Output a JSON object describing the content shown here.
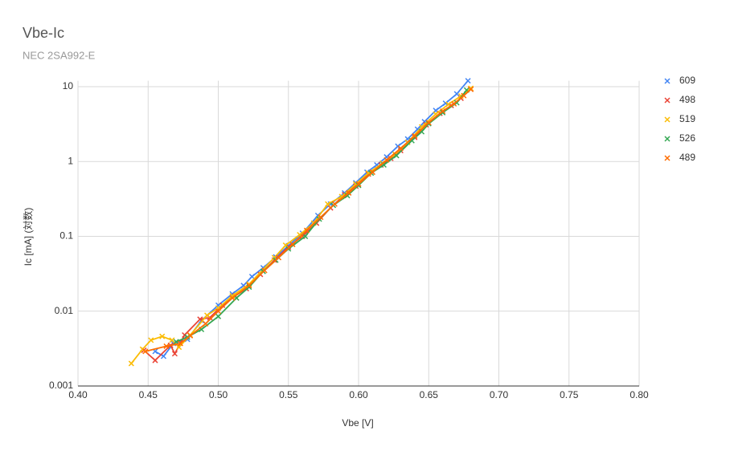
{
  "chart_data": {
    "type": "line",
    "title": "Vbe-Ic",
    "subtitle": "NEC 2SA992-E",
    "x_label": "Vbe [V]",
    "y_label": "Ic [mA] (対数)",
    "log_y": true,
    "grid": true,
    "legend": "right",
    "xlim": [
      0.4,
      0.8
    ],
    "xticks": [
      {
        "value": 0.4,
        "label": "0.40"
      },
      {
        "value": 0.45,
        "label": "0.45"
      },
      {
        "value": 0.5,
        "label": "0.50"
      },
      {
        "value": 0.55,
        "label": "0.55"
      },
      {
        "value": 0.6,
        "label": "0.60"
      },
      {
        "value": 0.65,
        "label": "0.65"
      },
      {
        "value": 0.7,
        "label": "0.70"
      },
      {
        "value": 0.75,
        "label": "0.75"
      },
      {
        "value": 0.8,
        "label": "0.80"
      }
    ],
    "ylim": [
      0.001,
      12
    ],
    "yticks": [
      0.001,
      0.01,
      0.1,
      1,
      10
    ],
    "series": [
      {
        "name": "609",
        "color": "#4285f4",
        "x": [
          0.455,
          0.461,
          0.468,
          0.478,
          0.488,
          0.5,
          0.51,
          0.518,
          0.524,
          0.532,
          0.541,
          0.55,
          0.56,
          0.571,
          0.58,
          0.59,
          0.598,
          0.606,
          0.613,
          0.62,
          0.628,
          0.635,
          0.642,
          0.647,
          0.655,
          0.662,
          0.67,
          0.678
        ],
        "values": [
          0.0029,
          0.0025,
          0.0037,
          0.0042,
          0.0075,
          0.012,
          0.017,
          0.022,
          0.029,
          0.038,
          0.053,
          0.075,
          0.11,
          0.19,
          0.27,
          0.38,
          0.52,
          0.72,
          0.9,
          1.15,
          1.6,
          2.0,
          2.7,
          3.4,
          4.8,
          6.0,
          8.0,
          12
        ]
      },
      {
        "name": "498",
        "color": "#ea4335",
        "x": [
          0.447,
          0.455,
          0.466,
          0.469,
          0.476,
          0.487,
          0.494,
          0.503,
          0.512,
          0.52,
          0.53,
          0.54,
          0.55,
          0.56,
          0.57,
          0.58,
          0.59,
          0.598,
          0.607,
          0.616,
          0.623,
          0.63,
          0.64,
          0.648,
          0.658,
          0.666,
          0.673,
          0.68
        ],
        "values": [
          0.003,
          0.0022,
          0.0035,
          0.0027,
          0.0048,
          0.0078,
          0.0082,
          0.012,
          0.016,
          0.02,
          0.031,
          0.048,
          0.072,
          0.1,
          0.15,
          0.24,
          0.36,
          0.47,
          0.68,
          0.9,
          1.1,
          1.4,
          2.1,
          3.1,
          4.4,
          5.6,
          7.0,
          9.3
        ]
      },
      {
        "name": "519",
        "color": "#fbbc04",
        "x": [
          0.438,
          0.446,
          0.452,
          0.46,
          0.467,
          0.472,
          0.48,
          0.492,
          0.5,
          0.51,
          0.522,
          0.54,
          0.548,
          0.558,
          0.568,
          0.578,
          0.588,
          0.598,
          0.607,
          0.617,
          0.626,
          0.635,
          0.645,
          0.655,
          0.664,
          0.673,
          0.68
        ],
        "values": [
          0.002,
          0.0031,
          0.0041,
          0.0046,
          0.0041,
          0.0033,
          0.0048,
          0.0088,
          0.011,
          0.016,
          0.023,
          0.052,
          0.076,
          0.105,
          0.15,
          0.27,
          0.34,
          0.5,
          0.7,
          0.95,
          1.25,
          1.8,
          2.9,
          4.3,
          5.8,
          7.5,
          9.5
        ]
      },
      {
        "name": "526",
        "color": "#34a853",
        "x": [
          0.47,
          0.478,
          0.488,
          0.5,
          0.513,
          0.522,
          0.532,
          0.541,
          0.55,
          0.562,
          0.572,
          0.582,
          0.592,
          0.6,
          0.609,
          0.618,
          0.627,
          0.638,
          0.645,
          0.65,
          0.66,
          0.67,
          0.677
        ],
        "values": [
          0.0039,
          0.0045,
          0.0057,
          0.0085,
          0.015,
          0.021,
          0.034,
          0.048,
          0.068,
          0.1,
          0.17,
          0.26,
          0.35,
          0.48,
          0.7,
          0.9,
          1.2,
          1.9,
          2.5,
          3.2,
          4.5,
          6.1,
          9.0
        ]
      },
      {
        "name": "489",
        "color": "#ff6d01",
        "x": [
          0.448,
          0.463,
          0.473,
          0.48,
          0.491,
          0.5,
          0.51,
          0.522,
          0.533,
          0.543,
          0.553,
          0.563,
          0.573,
          0.583,
          0.593,
          0.6,
          0.61,
          0.62,
          0.63,
          0.64,
          0.65,
          0.66,
          0.668,
          0.675,
          0.68
        ],
        "values": [
          0.0029,
          0.0034,
          0.0037,
          0.0047,
          0.0068,
          0.01,
          0.015,
          0.022,
          0.035,
          0.052,
          0.078,
          0.12,
          0.18,
          0.27,
          0.38,
          0.5,
          0.72,
          1.05,
          1.5,
          2.2,
          3.3,
          4.7,
          5.9,
          7.6,
          9.2
        ]
      }
    ]
  }
}
